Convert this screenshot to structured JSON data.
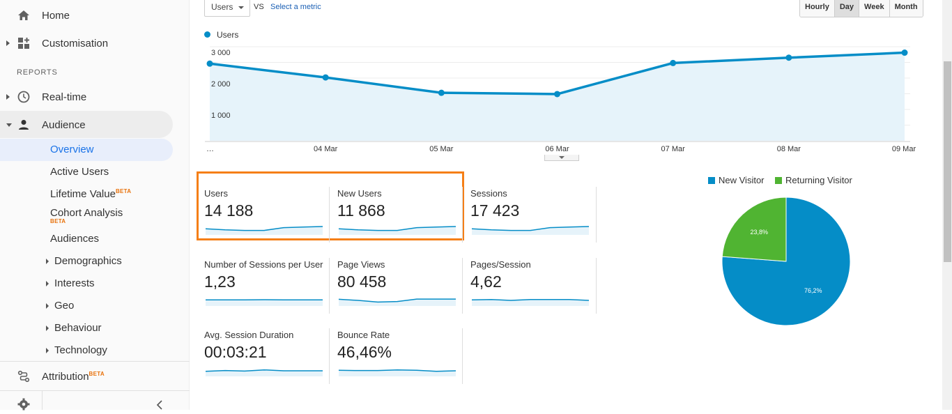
{
  "sidebar": {
    "home": "Home",
    "customisation": "Customisation",
    "reports_heading": "REPORTS",
    "realtime": "Real-time",
    "audience": "Audience",
    "overview": "Overview",
    "active_users": "Active Users",
    "lifetime_value": "Lifetime Value",
    "cohort_analysis": "Cohort Analysis",
    "audiences": "Audiences",
    "demographics": "Demographics",
    "interests": "Interests",
    "geo": "Geo",
    "behaviour": "Behaviour",
    "technology": "Technology",
    "attribution": "Attribution",
    "beta": "BETA"
  },
  "toolbar": {
    "metric_select": "Users",
    "vs": "VS",
    "select_metric": "Select a metric",
    "granularity": [
      "Hourly",
      "Day",
      "Week",
      "Month"
    ],
    "granularity_selected": "Day"
  },
  "chart_data": {
    "type": "area",
    "legend": "Users",
    "x": [
      "…",
      "04 Mar",
      "05 Mar",
      "06 Mar",
      "07 Mar",
      "08 Mar",
      "09 Mar"
    ],
    "values": [
      2460,
      2020,
      1530,
      1490,
      2480,
      2650,
      2810
    ],
    "yticks": [
      "3 000",
      "2 000",
      "1 000"
    ],
    "ylim": [
      0,
      3000
    ],
    "color": "#058dc7"
  },
  "metrics": [
    {
      "name": "Users",
      "value": "14 188",
      "spark": [
        0.55,
        0.45,
        0.4,
        0.4,
        0.65,
        0.7,
        0.75
      ]
    },
    {
      "name": "New Users",
      "value": "11 868",
      "spark": [
        0.55,
        0.45,
        0.4,
        0.4,
        0.65,
        0.7,
        0.75
      ]
    },
    {
      "name": "Sessions",
      "value": "17 423",
      "spark": [
        0.55,
        0.45,
        0.4,
        0.4,
        0.65,
        0.7,
        0.75
      ]
    },
    {
      "name": "Number of Sessions per User",
      "value": "1,23",
      "spark": [
        0.55,
        0.55,
        0.55,
        0.56,
        0.55,
        0.55,
        0.55
      ]
    },
    {
      "name": "Page Views",
      "value": "80 458",
      "spark": [
        0.6,
        0.5,
        0.35,
        0.4,
        0.62,
        0.62,
        0.62
      ]
    },
    {
      "name": "Pages/Session",
      "value": "4,62",
      "spark": [
        0.55,
        0.58,
        0.5,
        0.58,
        0.58,
        0.58,
        0.5
      ]
    },
    {
      "name": "Avg. Session Duration",
      "value": "00:03:21",
      "spark": [
        0.45,
        0.52,
        0.48,
        0.58,
        0.5,
        0.5,
        0.5
      ]
    },
    {
      "name": "Bounce Rate",
      "value": "46,46%",
      "spark": [
        0.55,
        0.52,
        0.52,
        0.58,
        0.55,
        0.45,
        0.5
      ]
    }
  ],
  "pie": {
    "slices": [
      {
        "name": "New Visitor",
        "value": 76.2,
        "label": "76,2%",
        "color": "#058dc7"
      },
      {
        "name": "Returning Visitor",
        "value": 23.8,
        "label": "23,8%",
        "color": "#50b432"
      }
    ]
  }
}
